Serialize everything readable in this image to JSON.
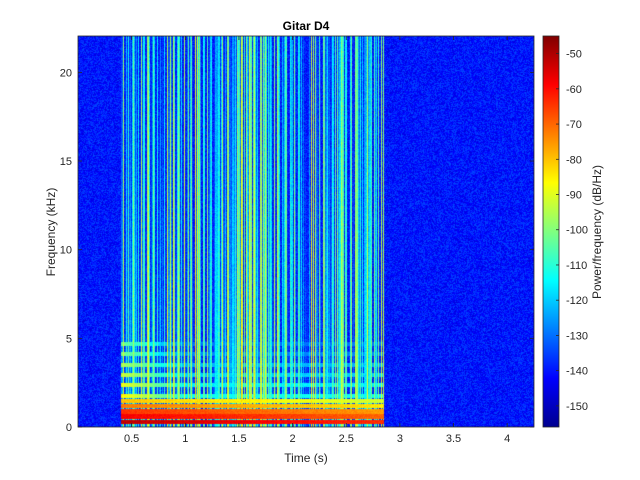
{
  "chart_data": {
    "type": "heatmap",
    "title": "Gitar D4",
    "xlabel": "Time (s)",
    "ylabel": "Frequency (kHz)",
    "colorbar_label": "Power/frequency (dB/Hz)",
    "colormap": "jet",
    "xlim": [
      0,
      4.25
    ],
    "ylim": [
      0,
      22.05
    ],
    "clim": [
      -156,
      -45
    ],
    "x_ticks": [
      0.5,
      1,
      1.5,
      2,
      2.5,
      3,
      3.5,
      4
    ],
    "x_tick_labels": [
      "0.5",
      "1",
      "1.5",
      "2",
      "2.5",
      "3",
      "3.5",
      "4"
    ],
    "y_ticks": [
      0,
      5,
      10,
      15,
      20
    ],
    "y_tick_labels": [
      "0",
      "5",
      "10",
      "15",
      "20"
    ],
    "colorbar_ticks": [
      -50,
      -60,
      -70,
      -80,
      -90,
      -100,
      -110,
      -120,
      -130,
      -140,
      -150
    ],
    "colorbar_tick_labels": [
      "-50",
      "-60",
      "-70",
      "-80",
      "-90",
      "-100",
      "-110",
      "-120",
      "-130",
      "-140",
      "-150"
    ],
    "note_onset_s": 0.4,
    "note_decay_end_s": 2.85,
    "noise_floor_db": -140,
    "sustained_harmonics": [
      {
        "freq_khz": 0.29,
        "db": -52
      },
      {
        "freq_khz": 0.59,
        "db": -58
      },
      {
        "freq_khz": 0.88,
        "db": -64
      },
      {
        "freq_khz": 1.17,
        "db": -72
      },
      {
        "freq_khz": 1.47,
        "db": -80
      }
    ],
    "decaying_harmonics": [
      {
        "freq_khz": 1.76,
        "db": -85
      },
      {
        "freq_khz": 2.35,
        "db": -88
      },
      {
        "freq_khz": 2.94,
        "db": -92
      },
      {
        "freq_khz": 3.5,
        "db": -95
      },
      {
        "freq_khz": 4.1,
        "db": -100
      },
      {
        "freq_khz": 4.7,
        "db": -102
      }
    ]
  }
}
